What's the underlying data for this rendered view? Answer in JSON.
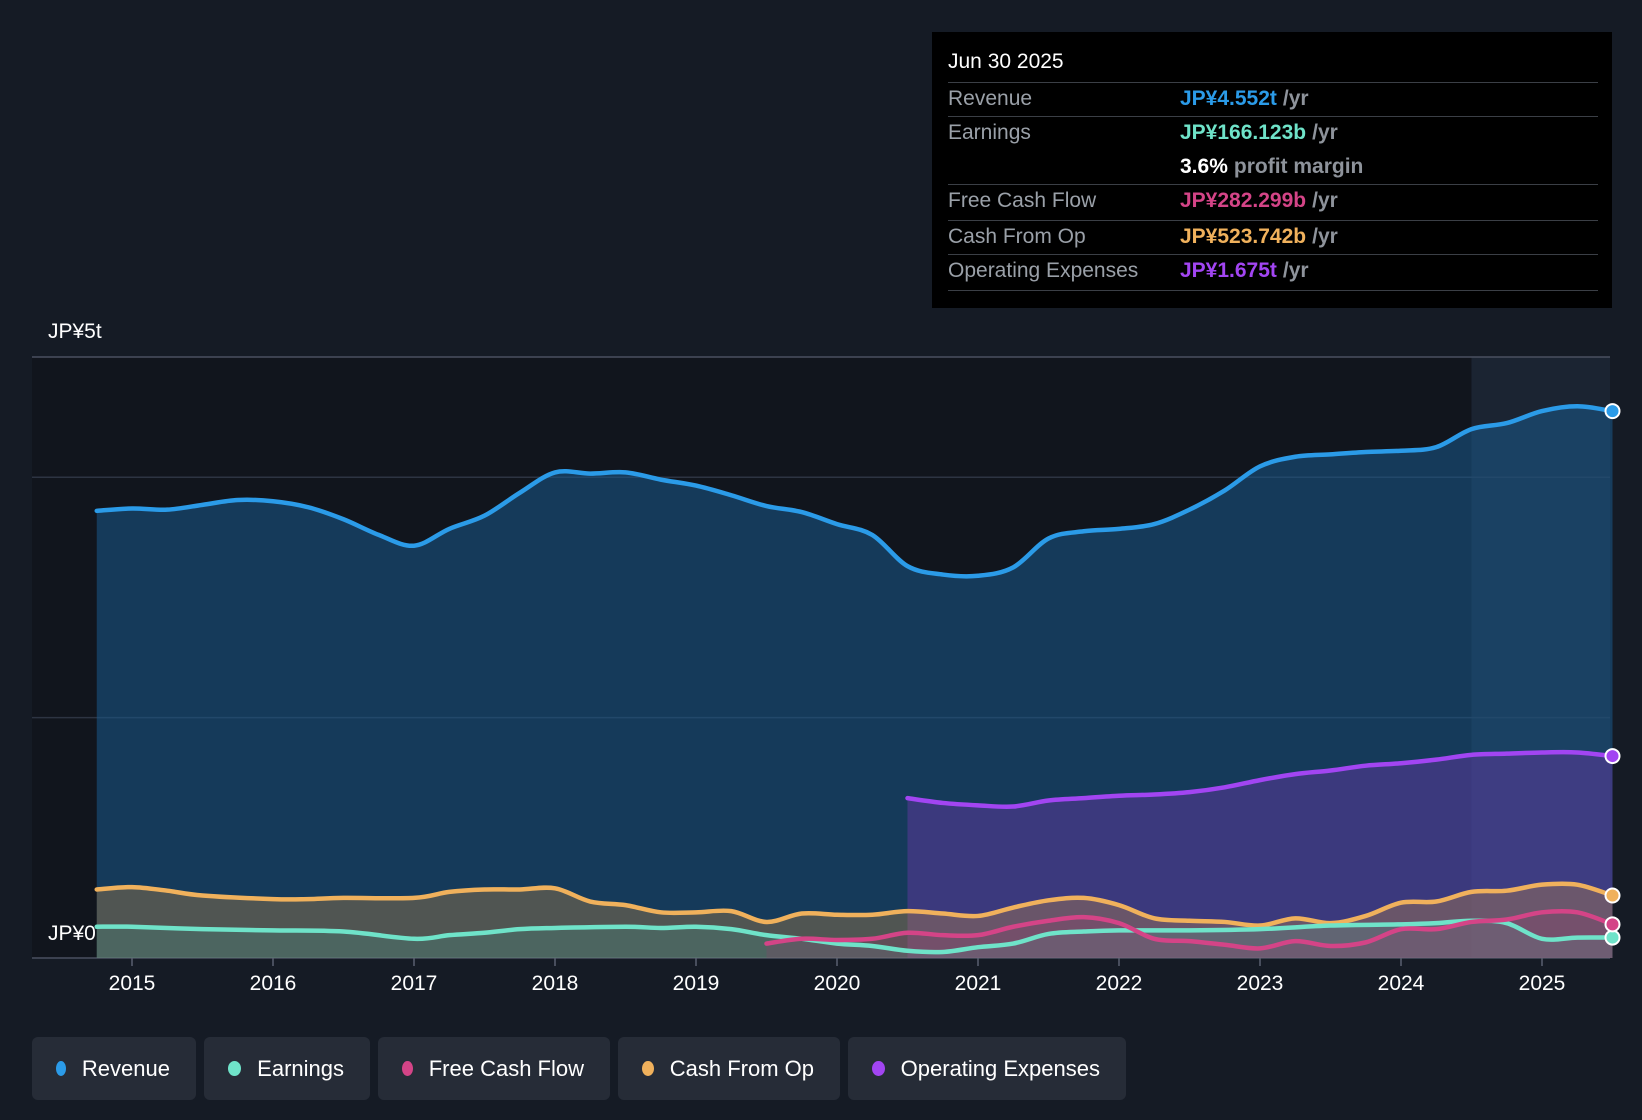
{
  "tooltip": {
    "date": "Jun 30 2025",
    "rows": [
      {
        "label": "Revenue",
        "value": "JP¥4.552t",
        "unit": "/yr",
        "color": "#2b9be8"
      },
      {
        "label": "Earnings",
        "value": "JP¥166.123b",
        "unit": "/yr",
        "color": "#6fe3c9",
        "sub_value": "3.6%",
        "sub_unit": "profit margin"
      },
      {
        "label": "Free Cash Flow",
        "value": "JP¥282.299b",
        "unit": "/yr",
        "color": "#d44487"
      },
      {
        "label": "Cash From Op",
        "value": "JP¥523.742b",
        "unit": "/yr",
        "color": "#f0b15c"
      },
      {
        "label": "Operating Expenses",
        "value": "JP¥1.675t",
        "unit": "/yr",
        "color": "#a245f2"
      }
    ]
  },
  "axis": {
    "y_top_label": "JP¥5t",
    "y_bottom_label": "JP¥0"
  },
  "legend": [
    {
      "label": "Revenue",
      "color": "#2b9be8"
    },
    {
      "label": "Earnings",
      "color": "#6fe3c9"
    },
    {
      "label": "Free Cash Flow",
      "color": "#d44487"
    },
    {
      "label": "Cash From Op",
      "color": "#f0b15c"
    },
    {
      "label": "Operating Expenses",
      "color": "#a245f2"
    }
  ],
  "chart_data": {
    "type": "area",
    "title": "",
    "xlabel": "",
    "ylabel": "",
    "x_ticks": [
      "2015",
      "2016",
      "2017",
      "2018",
      "2019",
      "2020",
      "2021",
      "2022",
      "2023",
      "2024",
      "2025"
    ],
    "x_range": [
      2014.73,
      2025.5
    ],
    "y_range": [
      0,
      5.0
    ],
    "y_unit": "JP¥ trillion",
    "gridlines": [
      0,
      2.0,
      4.0,
      5.0
    ],
    "highlight_start": 2024.5,
    "series": [
      {
        "name": "Revenue",
        "color": "#2b9be8",
        "points": [
          [
            2014.75,
            3.72
          ],
          [
            2015.0,
            3.74
          ],
          [
            2015.25,
            3.73
          ],
          [
            2015.5,
            3.77
          ],
          [
            2015.75,
            3.81
          ],
          [
            2016.0,
            3.8
          ],
          [
            2016.25,
            3.75
          ],
          [
            2016.5,
            3.65
          ],
          [
            2016.75,
            3.52
          ],
          [
            2017.0,
            3.43
          ],
          [
            2017.25,
            3.57
          ],
          [
            2017.5,
            3.68
          ],
          [
            2017.75,
            3.87
          ],
          [
            2018.0,
            4.04
          ],
          [
            2018.25,
            4.03
          ],
          [
            2018.5,
            4.04
          ],
          [
            2018.75,
            3.98
          ],
          [
            2019.0,
            3.93
          ],
          [
            2019.25,
            3.85
          ],
          [
            2019.5,
            3.76
          ],
          [
            2019.75,
            3.71
          ],
          [
            2020.0,
            3.61
          ],
          [
            2020.25,
            3.52
          ],
          [
            2020.5,
            3.26
          ],
          [
            2020.75,
            3.19
          ],
          [
            2021.0,
            3.18
          ],
          [
            2021.25,
            3.25
          ],
          [
            2021.5,
            3.49
          ],
          [
            2021.75,
            3.55
          ],
          [
            2022.0,
            3.57
          ],
          [
            2022.25,
            3.61
          ],
          [
            2022.5,
            3.73
          ],
          [
            2022.75,
            3.89
          ],
          [
            2023.0,
            4.09
          ],
          [
            2023.25,
            4.17
          ],
          [
            2023.5,
            4.19
          ],
          [
            2023.75,
            4.21
          ],
          [
            2024.0,
            4.22
          ],
          [
            2024.25,
            4.25
          ],
          [
            2024.5,
            4.4
          ],
          [
            2024.75,
            4.45
          ],
          [
            2025.0,
            4.55
          ],
          [
            2025.25,
            4.59
          ],
          [
            2025.5,
            4.55
          ]
        ]
      },
      {
        "name": "Earnings",
        "color": "#6fe3c9",
        "points": [
          [
            2014.75,
            0.26
          ],
          [
            2015.0,
            0.26
          ],
          [
            2015.5,
            0.24
          ],
          [
            2016.0,
            0.23
          ],
          [
            2016.5,
            0.22
          ],
          [
            2017.0,
            0.16
          ],
          [
            2017.25,
            0.19
          ],
          [
            2017.5,
            0.21
          ],
          [
            2017.75,
            0.24
          ],
          [
            2018.0,
            0.25
          ],
          [
            2018.5,
            0.26
          ],
          [
            2018.75,
            0.25
          ],
          [
            2019.0,
            0.26
          ],
          [
            2019.25,
            0.24
          ],
          [
            2019.5,
            0.19
          ],
          [
            2019.75,
            0.16
          ],
          [
            2020.0,
            0.12
          ],
          [
            2020.25,
            0.1
          ],
          [
            2020.5,
            0.06
          ],
          [
            2020.75,
            0.05
          ],
          [
            2021.0,
            0.09
          ],
          [
            2021.25,
            0.12
          ],
          [
            2021.5,
            0.2
          ],
          [
            2021.75,
            0.22
          ],
          [
            2022.0,
            0.23
          ],
          [
            2022.5,
            0.23
          ],
          [
            2023.0,
            0.24
          ],
          [
            2023.5,
            0.27
          ],
          [
            2024.0,
            0.28
          ],
          [
            2024.25,
            0.29
          ],
          [
            2024.5,
            0.31
          ],
          [
            2024.75,
            0.29
          ],
          [
            2025.0,
            0.16
          ],
          [
            2025.25,
            0.17
          ],
          [
            2025.5,
            0.17
          ]
        ]
      },
      {
        "name": "Free Cash Flow",
        "color": "#d44487",
        "points": [
          [
            2019.5,
            0.12
          ],
          [
            2019.75,
            0.16
          ],
          [
            2020.0,
            0.15
          ],
          [
            2020.25,
            0.16
          ],
          [
            2020.5,
            0.21
          ],
          [
            2020.75,
            0.19
          ],
          [
            2021.0,
            0.19
          ],
          [
            2021.25,
            0.26
          ],
          [
            2021.5,
            0.31
          ],
          [
            2021.75,
            0.34
          ],
          [
            2022.0,
            0.29
          ],
          [
            2022.25,
            0.16
          ],
          [
            2022.5,
            0.14
          ],
          [
            2022.75,
            0.11
          ],
          [
            2023.0,
            0.08
          ],
          [
            2023.25,
            0.14
          ],
          [
            2023.5,
            0.1
          ],
          [
            2023.75,
            0.13
          ],
          [
            2024.0,
            0.24
          ],
          [
            2024.25,
            0.24
          ],
          [
            2024.5,
            0.3
          ],
          [
            2024.75,
            0.32
          ],
          [
            2025.0,
            0.38
          ],
          [
            2025.25,
            0.38
          ],
          [
            2025.5,
            0.28
          ]
        ]
      },
      {
        "name": "Cash From Op",
        "color": "#f0b15c",
        "points": [
          [
            2014.75,
            0.57
          ],
          [
            2015.0,
            0.59
          ],
          [
            2015.25,
            0.56
          ],
          [
            2015.5,
            0.52
          ],
          [
            2016.0,
            0.49
          ],
          [
            2016.25,
            0.49
          ],
          [
            2016.5,
            0.5
          ],
          [
            2017.0,
            0.5
          ],
          [
            2017.25,
            0.55
          ],
          [
            2017.5,
            0.57
          ],
          [
            2017.75,
            0.57
          ],
          [
            2018.0,
            0.58
          ],
          [
            2018.25,
            0.47
          ],
          [
            2018.5,
            0.44
          ],
          [
            2018.75,
            0.38
          ],
          [
            2019.0,
            0.38
          ],
          [
            2019.25,
            0.39
          ],
          [
            2019.5,
            0.3
          ],
          [
            2019.75,
            0.37
          ],
          [
            2020.0,
            0.36
          ],
          [
            2020.25,
            0.36
          ],
          [
            2020.5,
            0.39
          ],
          [
            2020.75,
            0.37
          ],
          [
            2021.0,
            0.35
          ],
          [
            2021.25,
            0.42
          ],
          [
            2021.5,
            0.48
          ],
          [
            2021.75,
            0.5
          ],
          [
            2022.0,
            0.44
          ],
          [
            2022.25,
            0.33
          ],
          [
            2022.5,
            0.31
          ],
          [
            2022.75,
            0.3
          ],
          [
            2023.0,
            0.27
          ],
          [
            2023.25,
            0.33
          ],
          [
            2023.5,
            0.29
          ],
          [
            2023.75,
            0.35
          ],
          [
            2024.0,
            0.46
          ],
          [
            2024.25,
            0.47
          ],
          [
            2024.5,
            0.55
          ],
          [
            2024.75,
            0.56
          ],
          [
            2025.0,
            0.61
          ],
          [
            2025.25,
            0.61
          ],
          [
            2025.5,
            0.52
          ]
        ]
      },
      {
        "name": "Operating Expenses",
        "color": "#a245f2",
        "points": [
          [
            2020.5,
            1.33
          ],
          [
            2020.75,
            1.29
          ],
          [
            2021.0,
            1.27
          ],
          [
            2021.25,
            1.26
          ],
          [
            2021.5,
            1.31
          ],
          [
            2021.75,
            1.33
          ],
          [
            2022.0,
            1.35
          ],
          [
            2022.25,
            1.36
          ],
          [
            2022.5,
            1.38
          ],
          [
            2022.75,
            1.42
          ],
          [
            2023.0,
            1.48
          ],
          [
            2023.25,
            1.53
          ],
          [
            2023.5,
            1.56
          ],
          [
            2023.75,
            1.6
          ],
          [
            2024.0,
            1.62
          ],
          [
            2024.25,
            1.65
          ],
          [
            2024.5,
            1.69
          ],
          [
            2024.75,
            1.7
          ],
          [
            2025.0,
            1.71
          ],
          [
            2025.25,
            1.71
          ],
          [
            2025.5,
            1.68
          ]
        ]
      }
    ]
  }
}
